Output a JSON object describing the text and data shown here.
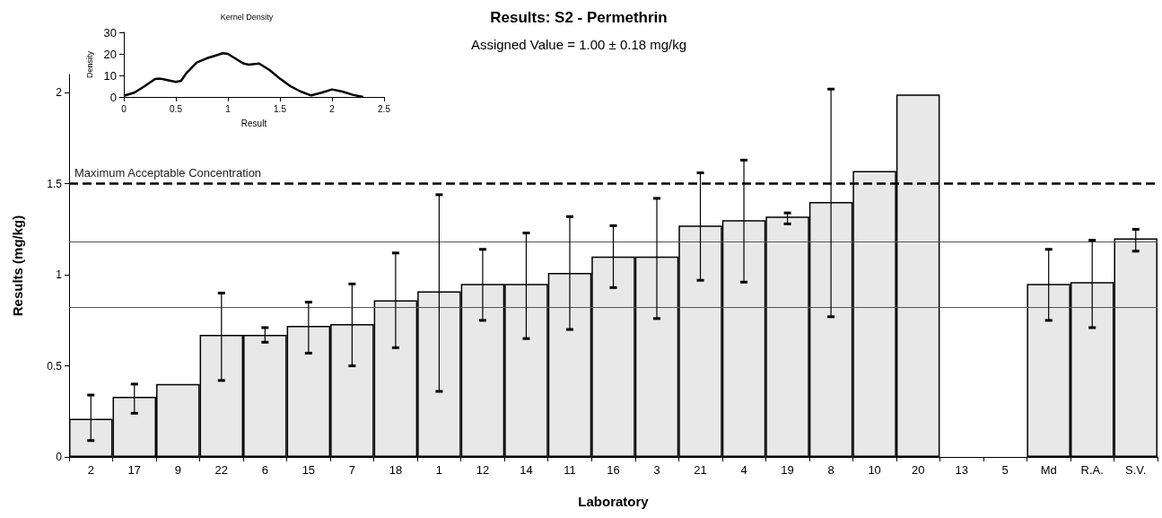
{
  "chart_data": [
    {
      "type": "bar",
      "title": "Results: S2 - Permethrin",
      "subtitle": "Assigned Value = 1.00 ± 0.18 mg/kg",
      "xlabel": "Laboratory",
      "ylabel": "Results (mg/kg)",
      "categories": [
        "2",
        "17",
        "9",
        "22",
        "6",
        "15",
        "7",
        "18",
        "1",
        "12",
        "14",
        "11",
        "16",
        "3",
        "21",
        "4",
        "19",
        "8",
        "10",
        "20",
        "13",
        "5",
        "Md",
        "R.A.",
        "S.V."
      ],
      "series": [
        {
          "color": "#e8e8e8",
          "values": [
            0.21,
            0.33,
            0.4,
            0.67,
            0.67,
            0.72,
            0.73,
            0.86,
            0.91,
            0.95,
            0.95,
            1.01,
            1.1,
            1.1,
            1.27,
            1.3,
            1.32,
            1.4,
            1.57,
            1.99,
            null,
            null,
            0.95,
            0.96,
            1.2
          ],
          "errors": [
            [
              0.09,
              0.34
            ],
            [
              0.24,
              0.4
            ],
            null,
            [
              0.42,
              0.9
            ],
            [
              0.63,
              0.71
            ],
            [
              0.57,
              0.85
            ],
            [
              0.5,
              0.95
            ],
            [
              0.6,
              1.12
            ],
            [
              0.36,
              1.44
            ],
            [
              0.75,
              1.14
            ],
            [
              0.65,
              1.23
            ],
            [
              0.7,
              1.32
            ],
            [
              0.93,
              1.27
            ],
            [
              0.76,
              1.42
            ],
            [
              0.97,
              1.56
            ],
            [
              0.96,
              1.63
            ],
            [
              1.28,
              1.34
            ],
            [
              0.77,
              2.02
            ],
            null,
            null,
            null,
            null,
            [
              0.75,
              1.14
            ],
            [
              0.71,
              1.19
            ],
            [
              1.13,
              1.25
            ]
          ]
        }
      ],
      "ylim": [
        0,
        2.1
      ],
      "yticks": [
        0,
        0.5,
        1,
        1.5,
        2
      ],
      "grid": false,
      "ref_lines": [
        {
          "axis": "y",
          "value": 1.5,
          "label": "Maximum Acceptable Concentration",
          "color": "#000000",
          "line_style": "dashed"
        },
        {
          "axis": "y",
          "value": 1.18,
          "color": "#555555",
          "line_style": "solid"
        },
        {
          "axis": "y",
          "value": 0.82,
          "color": "#555555",
          "line_style": "solid"
        }
      ]
    },
    {
      "type": "line",
      "title": "Kernel Density",
      "xlabel": "Result",
      "ylabel": "Density",
      "marker": "none",
      "line_style": "solid",
      "series": [
        {
          "color": "#000000",
          "x": [
            0,
            0.1,
            0.2,
            0.3,
            0.35,
            0.4,
            0.5,
            0.55,
            0.6,
            0.7,
            0.8,
            0.9,
            0.95,
            1.0,
            1.1,
            1.15,
            1.2,
            1.3,
            1.4,
            1.5,
            1.6,
            1.7,
            1.8,
            1.9,
            2.0,
            2.1,
            2.2,
            2.3
          ],
          "values": [
            0.5,
            2,
            5,
            8.3,
            8.5,
            8,
            7,
            7.5,
            11,
            16,
            18,
            19.5,
            20.3,
            20,
            17,
            15.5,
            15,
            15.5,
            12.5,
            8.5,
            5,
            2.5,
            0.7,
            2,
            3.5,
            2.5,
            1,
            0
          ]
        }
      ],
      "xlim": [
        0,
        2.5
      ],
      "xticks": [
        0,
        0.5,
        1,
        1.5,
        2,
        2.5
      ],
      "ylim": [
        0,
        30
      ],
      "yticks": [
        0,
        10,
        20,
        30
      ],
      "grid": false
    }
  ]
}
